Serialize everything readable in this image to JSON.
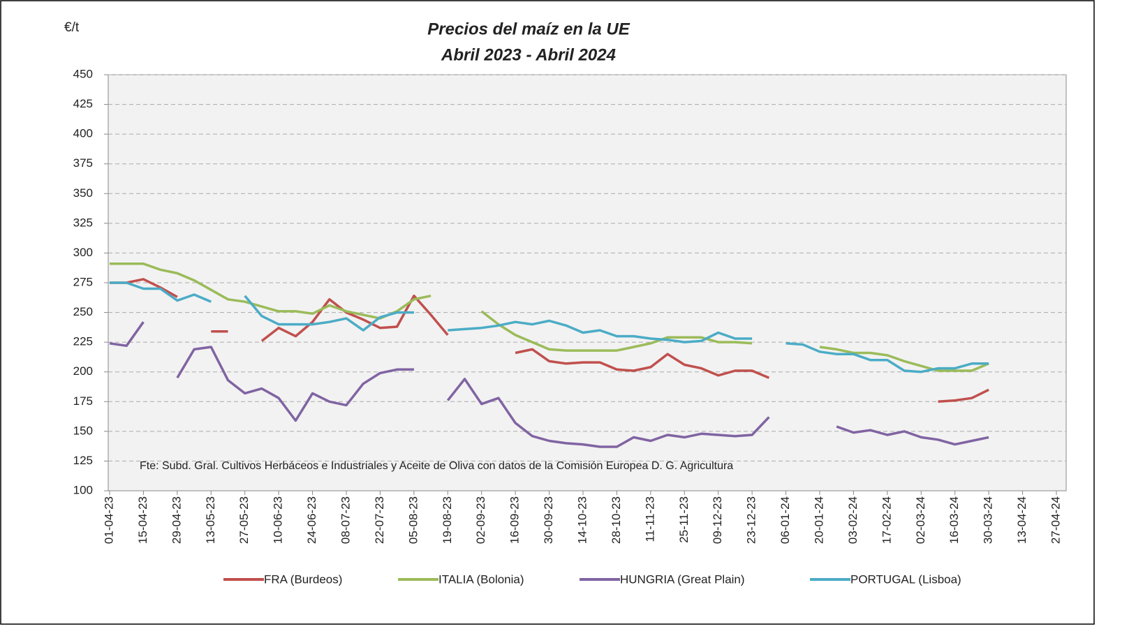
{
  "chart_data": {
    "type": "line",
    "title": "Precios del maíz en la UE",
    "subtitle": "Abril 2023 - Abril 2024",
    "y_label": "€/t",
    "annotation": "Fte: Subd. Gral. Cultivos Herbáceos e Industriales y Aceite de Oliva con datos de la Comisión Europea D. G. Agricultura",
    "categories": [
      "01-04-23",
      null,
      "15-04-23",
      null,
      "29-04-23",
      null,
      "13-05-23",
      null,
      "27-05-23",
      null,
      "10-06-23",
      null,
      "24-06-23",
      null,
      "08-07-23",
      null,
      "22-07-23",
      null,
      "05-08-23",
      null,
      "19-08-23",
      null,
      "02-09-23",
      null,
      "16-09-23",
      null,
      "30-09-23",
      null,
      "14-10-23",
      null,
      "28-10-23",
      null,
      "11-11-23",
      null,
      "25-11-23",
      null,
      "09-12-23",
      null,
      "23-12-23",
      null,
      "06-01-24",
      null,
      "20-01-24",
      null,
      "03-02-24",
      null,
      "17-02-24",
      null,
      "02-03-24",
      null,
      "16-03-24",
      null,
      "30-03-24",
      null,
      "13-04-24",
      null,
      "27-04-24"
    ],
    "series": [
      {
        "name": "FRA (Burdeos)",
        "color": "#c0504d",
        "values": [
          275,
          275,
          278,
          271,
          263,
          null,
          234,
          234,
          null,
          226,
          237,
          230,
          242,
          261,
          250,
          244,
          237,
          238,
          264,
          248,
          231,
          null,
          null,
          null,
          216,
          219,
          209,
          207,
          208,
          208,
          202,
          201,
          204,
          215,
          206,
          203,
          197,
          201,
          201,
          195,
          null,
          null,
          null,
          null,
          null,
          null,
          null,
          null,
          null,
          175,
          176,
          178,
          185,
          null,
          null,
          null,
          null
        ]
      },
      {
        "name": "ITALIA (Bolonia)",
        "color": "#9bbb59",
        "values": [
          291,
          291,
          291,
          286,
          283,
          277,
          269,
          261,
          259,
          255,
          251,
          251,
          249,
          256,
          251,
          248,
          245,
          251,
          261,
          264,
          null,
          null,
          251,
          240,
          231,
          225,
          219,
          218,
          218,
          218,
          218,
          221,
          224,
          229,
          229,
          229,
          225,
          225,
          224,
          null,
          null,
          null,
          221,
          219,
          216,
          216,
          214,
          209,
          205,
          201,
          201,
          201,
          207,
          null,
          null,
          null,
          null
        ]
      },
      {
        "name": "HUNGRIA (Great Plain)",
        "color": "#8064a2",
        "values": [
          224,
          222,
          242,
          null,
          195,
          219,
          221,
          193,
          182,
          186,
          178,
          159,
          182,
          175,
          172,
          190,
          199,
          202,
          202,
          null,
          176,
          194,
          173,
          178,
          157,
          146,
          142,
          140,
          139,
          137,
          137,
          145,
          142,
          147,
          145,
          148,
          147,
          146,
          147,
          162,
          null,
          null,
          null,
          154,
          149,
          151,
          147,
          150,
          145,
          143,
          139,
          142,
          145,
          null,
          null,
          null,
          null
        ]
      },
      {
        "name": "PORTUGAL (Lisboa)",
        "color": "#4bacc6",
        "values": [
          275,
          275,
          270,
          270,
          260,
          265,
          259,
          null,
          264,
          247,
          240,
          240,
          240,
          242,
          245,
          235,
          246,
          250,
          250,
          null,
          235,
          236,
          237,
          239,
          242,
          240,
          243,
          239,
          233,
          235,
          230,
          230,
          228,
          227,
          225,
          226,
          233,
          228,
          228,
          null,
          224,
          223,
          217,
          215,
          215,
          210,
          210,
          201,
          200,
          203,
          203,
          207,
          207,
          null,
          null,
          null,
          null
        ]
      }
    ],
    "ylim": [
      100,
      450
    ],
    "yticks": [
      100,
      125,
      150,
      175,
      200,
      225,
      250,
      275,
      300,
      325,
      350,
      375,
      400,
      425,
      450
    ],
    "grid": true
  }
}
